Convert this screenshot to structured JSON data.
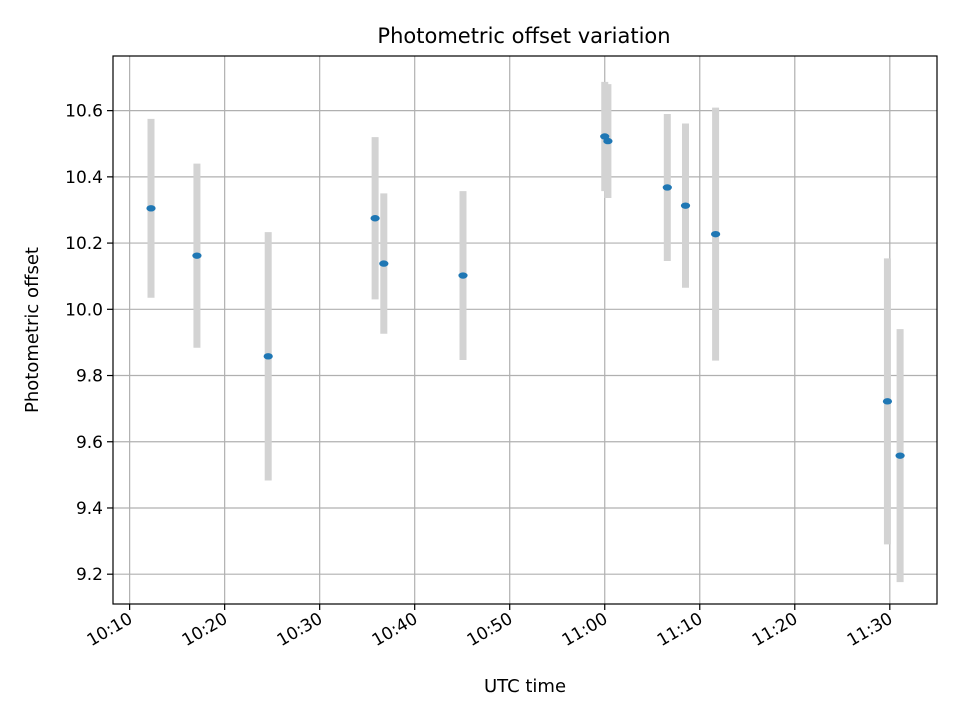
{
  "chart_data": {
    "type": "scatter",
    "title": "Photometric offset variation",
    "xlabel": "UTC time",
    "ylabel": "Photometric offset",
    "x_ticks": [
      "10:10",
      "10:20",
      "10:30",
      "10:40",
      "10:50",
      "11:00",
      "11:10",
      "11:20",
      "11:30"
    ],
    "y_ticks": [
      "9.2",
      "9.4",
      "9.6",
      "9.8",
      "10.0",
      "10.2",
      "10.4",
      "10.6"
    ],
    "xlim": [
      "10:08:15",
      "11:34:58"
    ],
    "ylim": [
      9.11,
      10.765
    ],
    "grid": true,
    "errorbar_color": "#d3d3d3",
    "marker_color": "#1f77b4",
    "points": [
      {
        "x": "10:12:15",
        "y": 10.305,
        "err": 0.27
      },
      {
        "x": "10:17:05",
        "y": 10.162,
        "err": 0.278
      },
      {
        "x": "10:24:35",
        "y": 9.858,
        "err": 0.375
      },
      {
        "x": "10:35:50",
        "y": 10.275,
        "err": 0.245
      },
      {
        "x": "10:36:45",
        "y": 10.138,
        "err": 0.212
      },
      {
        "x": "10:45:05",
        "y": 10.102,
        "err": 0.255
      },
      {
        "x": "11:00:00",
        "y": 10.522,
        "err": 0.165
      },
      {
        "x": "11:00:20",
        "y": 10.508,
        "err": 0.172
      },
      {
        "x": "11:06:35",
        "y": 10.368,
        "err": 0.222
      },
      {
        "x": "11:08:30",
        "y": 10.313,
        "err": 0.248
      },
      {
        "x": "11:11:40",
        "y": 10.227,
        "err": 0.382
      },
      {
        "x": "11:29:45",
        "y": 9.722,
        "err": 0.432
      },
      {
        "x": "11:31:05",
        "y": 9.558,
        "err": 0.382
      }
    ]
  }
}
